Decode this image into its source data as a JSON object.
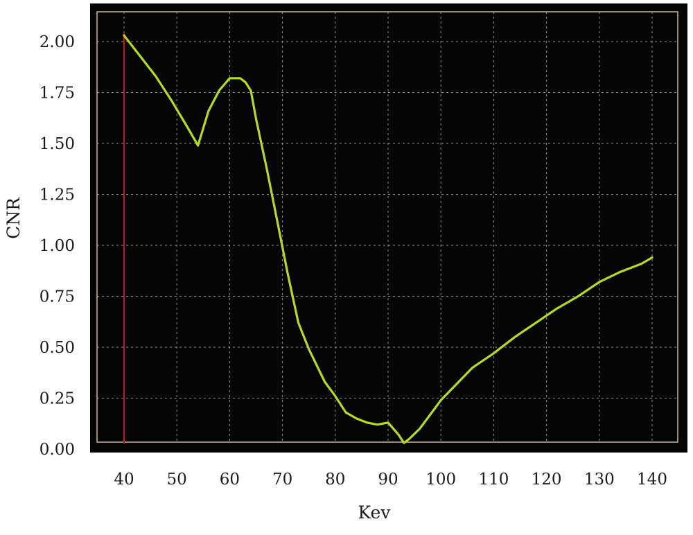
{
  "chart_data": {
    "type": "line",
    "title": "",
    "xlabel": "Kev",
    "ylabel": "CNR",
    "xlim": [
      39,
      143
    ],
    "ylim": [
      0,
      2.1
    ],
    "grid": true,
    "legend": "none",
    "x_ticks": [
      {
        "value": 40,
        "label": "40"
      },
      {
        "value": 50,
        "label": "50"
      },
      {
        "value": 60,
        "label": "60"
      },
      {
        "value": 70,
        "label": "70"
      },
      {
        "value": 80,
        "label": "80"
      },
      {
        "value": 90,
        "label": "90"
      },
      {
        "value": 100,
        "label": "100"
      },
      {
        "value": 110,
        "label": "110"
      },
      {
        "value": 120,
        "label": "120"
      },
      {
        "value": 130,
        "label": "130"
      },
      {
        "value": 140,
        "label": "140"
      }
    ],
    "y_ticks": [
      {
        "value": 0,
        "label": "0.00"
      },
      {
        "value": 0.25,
        "label": "0.25"
      },
      {
        "value": 0.5,
        "label": "0.50"
      },
      {
        "value": 0.75,
        "label": "0.75"
      },
      {
        "value": 1.0,
        "label": "1.00"
      },
      {
        "value": 1.25,
        "label": "1.25"
      },
      {
        "value": 1.5,
        "label": "1.50"
      },
      {
        "value": 1.75,
        "label": "1.75"
      },
      {
        "value": 2.0,
        "label": "2.00"
      }
    ],
    "marker_line_x": 40,
    "series": [
      {
        "color": "#b5dc1c",
        "x": [
          40,
          43,
          46,
          49,
          52,
          54,
          56,
          58,
          60,
          61,
          62,
          63,
          64,
          65,
          67,
          69,
          71,
          73,
          75,
          78,
          80,
          82,
          84,
          86,
          88,
          90,
          92,
          93,
          94,
          96,
          98,
          100,
          103,
          106,
          110,
          114,
          118,
          122,
          126,
          130,
          134,
          138,
          140
        ],
        "y": [
          2.03,
          1.93,
          1.83,
          1.71,
          1.58,
          1.49,
          1.66,
          1.76,
          1.82,
          1.82,
          1.82,
          1.8,
          1.76,
          1.62,
          1.38,
          1.12,
          0.86,
          0.62,
          0.49,
          0.33,
          0.26,
          0.18,
          0.15,
          0.13,
          0.12,
          0.13,
          0.07,
          0.03,
          0.05,
          0.1,
          0.17,
          0.24,
          0.32,
          0.4,
          0.47,
          0.55,
          0.62,
          0.69,
          0.75,
          0.82,
          0.87,
          0.91,
          0.94
        ]
      }
    ],
    "colors": {
      "plot_background": "#050505",
      "grid": "#bcbcbc",
      "frame": "#c8b99a",
      "marker_line": "#c8161e"
    }
  }
}
